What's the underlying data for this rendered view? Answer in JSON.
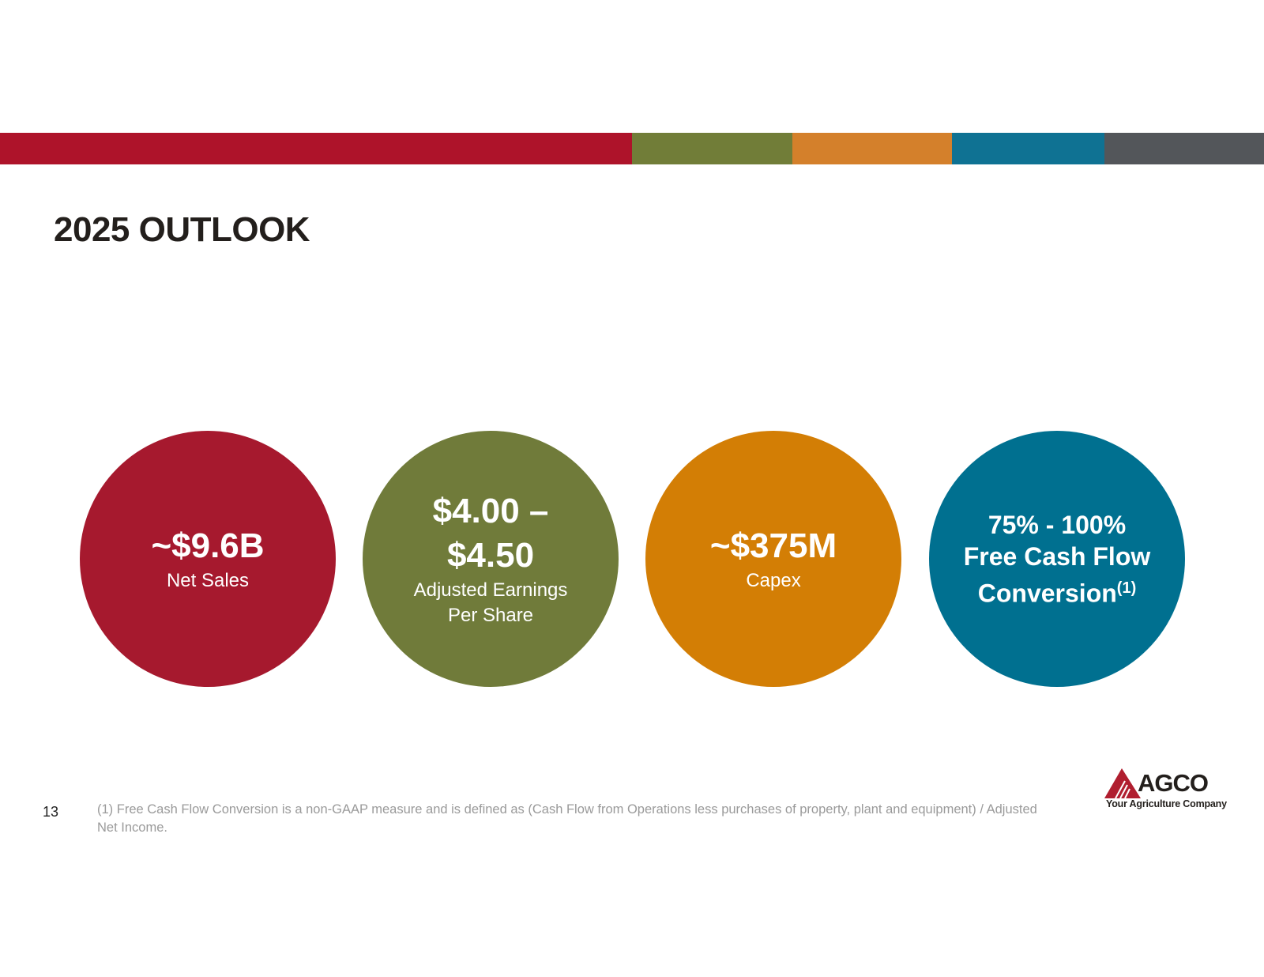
{
  "colors": {
    "red": "#a6192e",
    "green": "#707b3a",
    "orange": "#d37e05",
    "blue": "#007090",
    "gray": "#53565a",
    "title": "#231f1c"
  },
  "title": "2025 OUTLOOK",
  "metrics": [
    {
      "value": "~$9.6B",
      "label": "Net Sales"
    },
    {
      "value_line1": "$4.00 –",
      "value_line2": "$4.50",
      "label_line1": "Adjusted Earnings",
      "label_line2": "Per Share"
    },
    {
      "value": "~$375M",
      "label": "Capex"
    },
    {
      "line1": "75% - 100%",
      "line2": "Free Cash Flow",
      "line3": "Conversion",
      "footnote_ref": "(1)"
    }
  ],
  "page_number": "13",
  "footnote": "(1) Free Cash Flow Conversion is a non-GAAP measure and is defined as (Cash Flow from Operations less purchases of property, plant and equipment) / Adjusted Net Income.",
  "logo": {
    "name": "AGCO",
    "tagline": "Your Agriculture Company"
  }
}
